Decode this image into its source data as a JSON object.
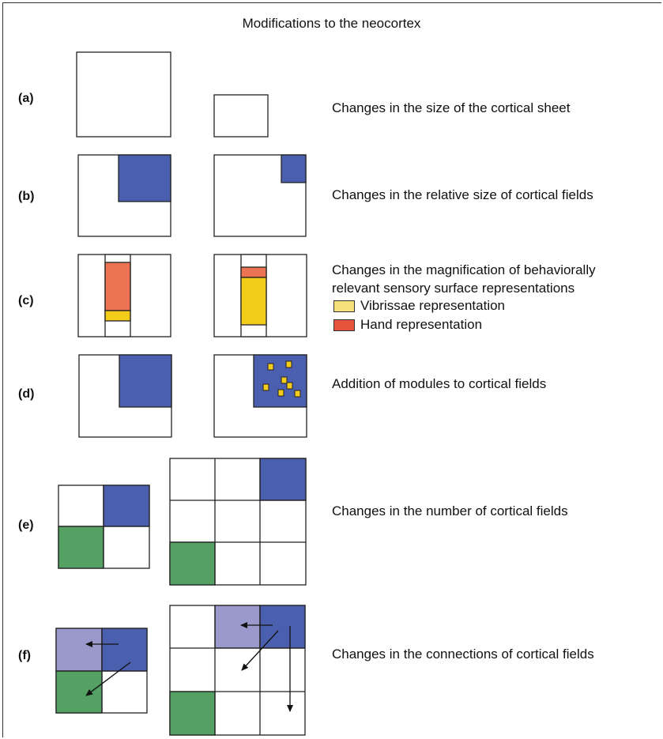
{
  "title": "Modifications to the neocortex",
  "rows": [
    {
      "label": "(a)",
      "description": "Changes in the size of the cortical sheet"
    },
    {
      "label": "(b)",
      "description": "Changes in the relative size of cortical fields"
    },
    {
      "label": "(c)",
      "description_lines": [
        "Changes in the magnification of behaviorally",
        "relevant sensory surface representations"
      ]
    },
    {
      "label": "(d)",
      "description": "Addition of modules to cortical fields"
    },
    {
      "label": "(e)",
      "description": "Changes in the number of cortical fields"
    },
    {
      "label": "(f)",
      "description": "Changes in the connections of cortical fields"
    }
  ],
  "legend": [
    {
      "label": "Vibrissae representation",
      "color": "#f7e07a"
    },
    {
      "label": "Hand representation",
      "color": "#e8533e"
    }
  ],
  "colors": {
    "blue": "#4a5fae",
    "light_purple": "#9a99cc",
    "green": "#55a163",
    "salmon": "#ec7353",
    "orange_red": "#e8533e",
    "yellow": "#f4cd1a",
    "stroke": "#222222"
  }
}
